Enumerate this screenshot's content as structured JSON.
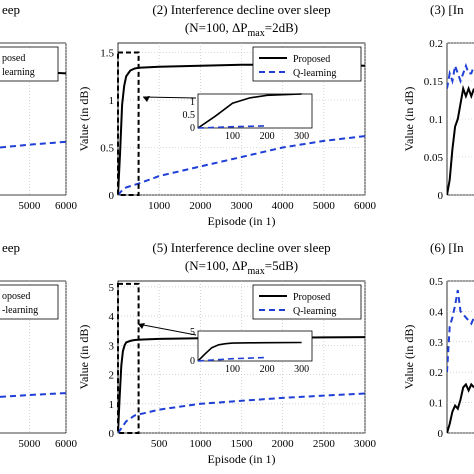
{
  "chart_data": [
    {
      "panel": "left-top",
      "type": "line",
      "title": "eep",
      "subtitle": "",
      "xticks": [
        5000,
        6000
      ],
      "xtick_labels": [
        "5000",
        "6000"
      ],
      "xlim": [
        4200,
        6000
      ],
      "ylim": [
        0,
        1.6
      ],
      "series": [
        {
          "name": "Proposed",
          "x": [
            4200,
            5000,
            6000
          ],
          "y": [
            1.32,
            1.3,
            1.28
          ]
        },
        {
          "name": "Q-learning",
          "x": [
            4200,
            5000,
            6000
          ],
          "y": [
            0.5,
            0.53,
            0.56
          ]
        }
      ],
      "legend_labels": [
        "posed",
        "learning"
      ]
    },
    {
      "panel": "middle-top",
      "type": "line",
      "title": "(2) Interference decline over sleep",
      "subtitle": "(N=100, ΔP",
      "subtitle_sub": "max",
      "subtitle_end": "=2dB)",
      "xlabel": "Episode (in 1)",
      "ylabel": "Value (in dB)",
      "xlim": [
        0,
        6000
      ],
      "ylim": [
        0,
        1.6
      ],
      "xticks": [
        1000,
        2000,
        3000,
        4000,
        5000,
        6000
      ],
      "xtick_labels": [
        "1000",
        "2000",
        "3000",
        "4000",
        "5000",
        "6000"
      ],
      "yticks": [
        0,
        0.5,
        1,
        1.5
      ],
      "ytick_labels": [
        "0",
        "0.5",
        "1",
        "1.5"
      ],
      "series": [
        {
          "name": "Proposed",
          "x": [
            0,
            50,
            100,
            150,
            200,
            300,
            400,
            500,
            1000,
            2000,
            3000,
            4000,
            5000,
            6000
          ],
          "y": [
            0,
            0.45,
            0.95,
            1.15,
            1.25,
            1.31,
            1.33,
            1.34,
            1.35,
            1.36,
            1.37,
            1.37,
            1.37,
            1.36
          ]
        },
        {
          "name": "Q-learning",
          "x": [
            0,
            100,
            200,
            500,
            1000,
            2000,
            3000,
            4000,
            5000,
            6000
          ],
          "y": [
            0,
            0.05,
            0.08,
            0.12,
            0.2,
            0.3,
            0.4,
            0.5,
            0.57,
            0.62
          ]
        }
      ],
      "legend": [
        "Proposed",
        "Q-learning"
      ],
      "zoom_box": {
        "x": [
          0,
          500
        ],
        "y": [
          0,
          1.5
        ]
      },
      "inset": {
        "xticks": [
          100,
          200,
          300
        ],
        "xtick_labels": [
          "100",
          "200",
          "300"
        ],
        "yticks": [
          0,
          0.5,
          1
        ],
        "ytick_labels": [
          "0",
          "0.5",
          "1"
        ],
        "xlim": [
          0,
          330
        ],
        "ylim": [
          0,
          1.3
        ]
      }
    },
    {
      "panel": "right-top",
      "type": "line",
      "title": "(3) [In",
      "ylabel": "Value (in dB)",
      "ylim": [
        0,
        0.2
      ],
      "yticks": [
        0,
        0.05,
        0.1,
        0.15,
        0.2
      ],
      "ytick_labels": [
        "0",
        "0.05",
        "0.1",
        "0.15",
        "0.2"
      ],
      "series": [
        {
          "name": "Proposed",
          "x": [
            0,
            1,
            2,
            3,
            4,
            5,
            6,
            7,
            8,
            9,
            10
          ],
          "y": [
            0.0,
            0.02,
            0.06,
            0.09,
            0.1,
            0.12,
            0.14,
            0.13,
            0.14,
            0.13,
            0.14
          ]
        },
        {
          "name": "Q-learning",
          "x": [
            0,
            1,
            2,
            3,
            4,
            5,
            6,
            7,
            8,
            9,
            10
          ],
          "y": [
            0.14,
            0.16,
            0.15,
            0.17,
            0.16,
            0.15,
            0.16,
            0.17,
            0.16,
            0.16,
            0.17
          ]
        }
      ]
    },
    {
      "panel": "left-bottom",
      "type": "line",
      "title": "eep",
      "xticks": [
        5000,
        6000
      ],
      "xtick_labels": [
        "5000",
        "6000"
      ],
      "xlim": [
        4200,
        6000
      ],
      "ylim": [
        0,
        1.6
      ],
      "series": [
        {
          "name": "Q-learning",
          "x": [
            4200,
            5000,
            6000
          ],
          "y": [
            0.38,
            0.4,
            0.42
          ]
        }
      ],
      "legend_labels": [
        "oposed",
        "-learning"
      ]
    },
    {
      "panel": "middle-bottom",
      "type": "line",
      "title": "(5) Interference decline over sleep",
      "subtitle": "(N=100, ΔP",
      "subtitle_sub": "max",
      "subtitle_end": "=5dB)",
      "xlabel": "Episode (in 1)",
      "ylabel": "Value (in dB)",
      "xlim": [
        0,
        3000
      ],
      "ylim": [
        0,
        5.2
      ],
      "xticks": [
        500,
        1000,
        1500,
        2000,
        2500,
        3000
      ],
      "xtick_labels": [
        "500",
        "1000",
        "1500",
        "2000",
        "2500",
        "3000"
      ],
      "yticks": [
        0,
        1,
        2,
        3,
        4,
        5
      ],
      "ytick_labels": [
        "0",
        "1",
        "2",
        "3",
        "4",
        "5"
      ],
      "series": [
        {
          "name": "Proposed",
          "x": [
            0,
            20,
            40,
            60,
            80,
            100,
            150,
            200,
            300,
            500,
            1000,
            1500,
            2000,
            2500,
            3000
          ],
          "y": [
            0,
            1.2,
            2.3,
            2.8,
            3.0,
            3.1,
            3.15,
            3.18,
            3.2,
            3.22,
            3.24,
            3.25,
            3.26,
            3.27,
            3.28
          ]
        },
        {
          "name": "Q-learning",
          "x": [
            0,
            100,
            200,
            500,
            1000,
            1500,
            2000,
            2500,
            3000
          ],
          "y": [
            0,
            0.4,
            0.6,
            0.8,
            1.0,
            1.1,
            1.2,
            1.28,
            1.35
          ]
        }
      ],
      "legend": [
        "Proposed",
        "Q-learning"
      ],
      "zoom_box": {
        "x": [
          0,
          250
        ],
        "y": [
          0,
          5.1
        ]
      },
      "inset": {
        "xticks": [
          100,
          200,
          300
        ],
        "xtick_labels": [
          "100",
          "200",
          "300"
        ],
        "yticks": [
          0,
          5
        ],
        "ytick_labels": [
          "0",
          "5"
        ],
        "xlim": [
          0,
          330
        ],
        "ylim": [
          0,
          5.2
        ]
      }
    },
    {
      "panel": "right-bottom",
      "type": "line",
      "title": "(6) [In",
      "ylabel": "Value (in dB)",
      "ylim": [
        0,
        0.5
      ],
      "yticks": [
        0,
        0.1,
        0.2,
        0.3,
        0.4,
        0.5
      ],
      "ytick_labels": [
        "0",
        "0.1",
        "0.2",
        "0.3",
        "0.4",
        "0.5"
      ],
      "series": [
        {
          "name": "Proposed",
          "x": [
            0,
            1,
            2,
            3,
            4,
            5,
            6,
            7,
            8,
            9,
            10
          ],
          "y": [
            0.0,
            0.03,
            0.07,
            0.09,
            0.08,
            0.11,
            0.15,
            0.16,
            0.14,
            0.16,
            0.15
          ]
        },
        {
          "name": "Q-learning",
          "x": [
            0,
            1,
            2,
            3,
            4,
            5,
            6,
            7,
            8,
            9,
            10
          ],
          "y": [
            0.2,
            0.35,
            0.38,
            0.42,
            0.47,
            0.4,
            0.39,
            0.38,
            0.37,
            0.36,
            0.38
          ]
        }
      ]
    }
  ]
}
